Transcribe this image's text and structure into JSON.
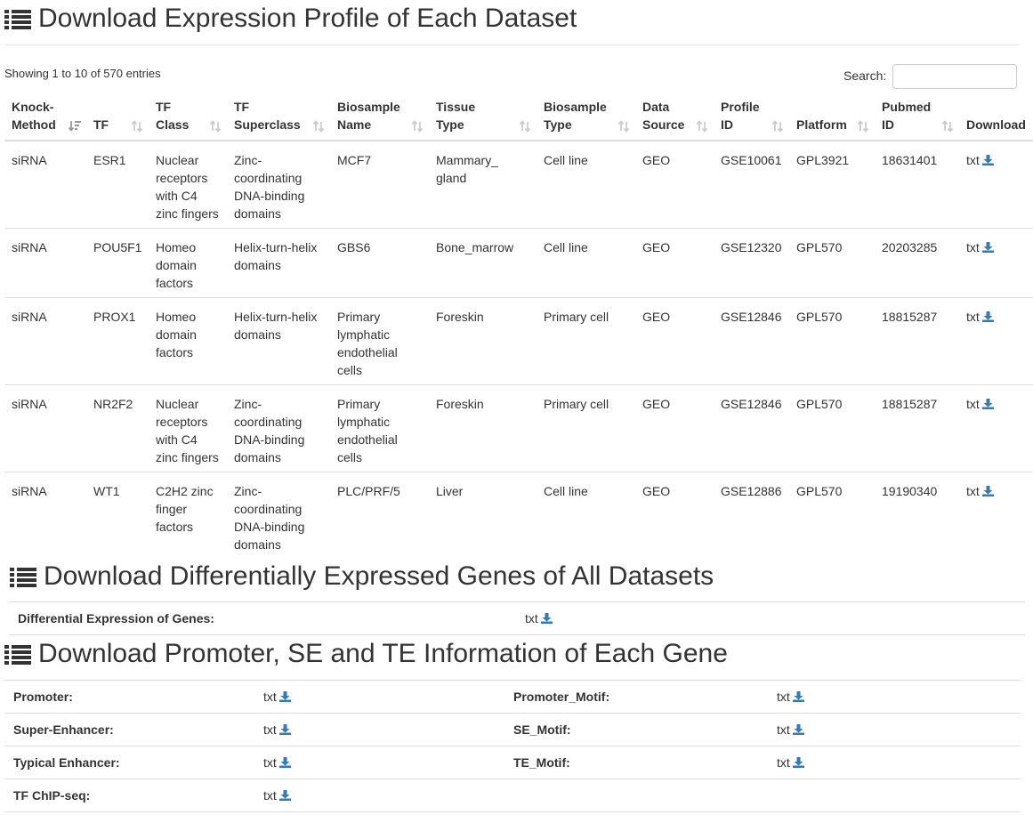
{
  "section1": {
    "title": "Download Expression Profile of Each Dataset"
  },
  "table_info": "Showing 1 to 10 of 570 entries",
  "search": {
    "label": "Search:",
    "value": ""
  },
  "columns": [
    [
      "Knock-",
      "Method"
    ],
    [
      "TF"
    ],
    [
      "TF",
      "Class"
    ],
    [
      "TF",
      "Superclass"
    ],
    [
      "Biosample",
      "Name"
    ],
    [
      "Tissue",
      "Type"
    ],
    [
      "Biosample",
      "Type"
    ],
    [
      "Data",
      "Source"
    ],
    [
      "Profile",
      "ID"
    ],
    [
      "Platform"
    ],
    [
      "Pubmed",
      "ID"
    ],
    [
      "Download"
    ]
  ],
  "rows": [
    [
      "siRNA",
      "ESR1",
      "Nuclear receptors with C4 zinc fingers",
      "Zinc-coordinating DNA-binding domains",
      "MCF7",
      "Mammary_ gland",
      "Cell line",
      "GEO",
      "GSE10061",
      "GPL3921",
      "18631401",
      "txt"
    ],
    [
      "siRNA",
      "POU5F1",
      "Homeo domain factors",
      "Helix-turn-helix domains",
      "GBS6",
      "Bone_marrow",
      "Cell line",
      "GEO",
      "GSE12320",
      "GPL570",
      "20203285",
      "txt"
    ],
    [
      "siRNA",
      "PROX1",
      "Homeo domain factors",
      "Helix-turn-helix domains",
      "Primary lymphatic endothelial cells",
      "Foreskin",
      "Primary cell",
      "GEO",
      "GSE12846",
      "GPL570",
      "18815287",
      "txt"
    ],
    [
      "siRNA",
      "NR2F2",
      "Nuclear receptors with C4 zinc fingers",
      "Zinc-coordinating DNA-binding domains",
      "Primary lymphatic endothelial cells",
      "Foreskin",
      "Primary cell",
      "GEO",
      "GSE12846",
      "GPL570",
      "18815287",
      "txt"
    ],
    [
      "siRNA",
      "WT1",
      "C2H2 zinc finger factors",
      "Zinc-coordinating DNA-binding domains",
      "PLC/PRF/5",
      "Liver",
      "Cell line",
      "GEO",
      "GSE12886",
      "GPL570",
      "19190340",
      "txt"
    ]
  ],
  "section2": {
    "title": "Download Differentially Expressed Genes of All Datasets",
    "label": "Differential Expression of Genes:",
    "link": "txt"
  },
  "section3": {
    "title": "Download Promoter, SE and TE Information of Each Gene",
    "rows": [
      {
        "left_label": "Promoter:",
        "left_link": "txt",
        "right_label": "Promoter_Motif:",
        "right_link": "txt"
      },
      {
        "left_label": "Super-Enhancer:",
        "left_link": "txt",
        "right_label": "SE_Motif:",
        "right_link": "txt"
      },
      {
        "left_label": "Typical Enhancer:",
        "left_link": "txt",
        "right_label": "TE_Motif:",
        "right_link": "txt"
      },
      {
        "left_label": "TF ChIP-seq:",
        "left_link": "txt",
        "right_label": "",
        "right_link": ""
      }
    ]
  },
  "colors": {
    "link_icon": "#337ab7",
    "text": "#333333",
    "sort_icon": "#cccccc",
    "sort_active": "#999999"
  },
  "icons": {
    "section": "list-icon",
    "download": "download-icon",
    "sort": "sort-icon"
  }
}
